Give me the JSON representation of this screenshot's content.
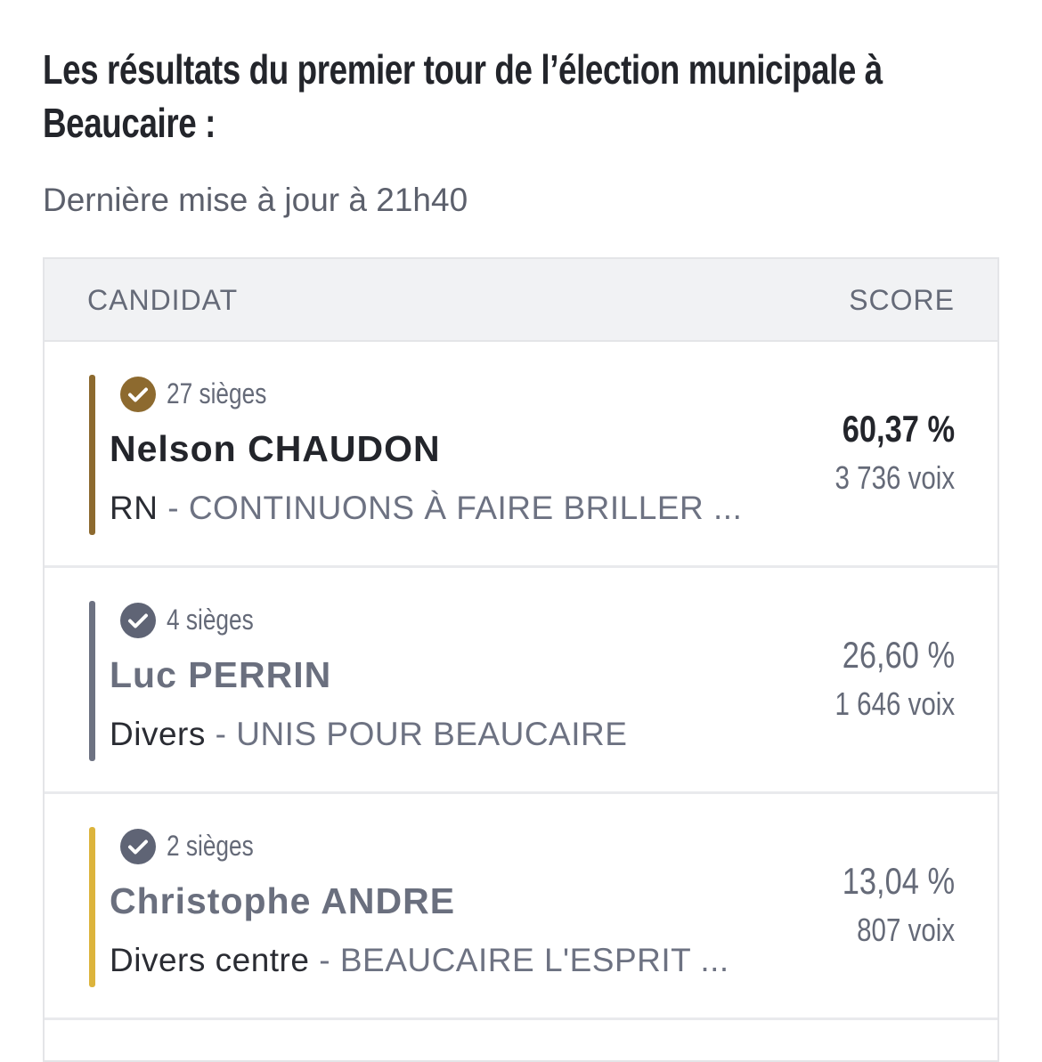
{
  "header": {
    "title": "Les résultats du premier tour de l’élection municipale à Beaucaire :",
    "updated": "Dernière mise à jour à 21h40"
  },
  "table": {
    "columns": [
      "CANDIDAT",
      "SCORE"
    ],
    "rows": [
      {
        "seats": "27 sièges",
        "name": "Nelson CHAUDON",
        "party": "RN",
        "list": "- CONTINUONS À FAIRE BRILLER ...",
        "score": "60,37 %",
        "votes": "3 736 voix",
        "bar_color": "#8d6a2f",
        "icon_color": "#8d6a2f"
      },
      {
        "seats": "4 sièges",
        "name": "Luc PERRIN",
        "party": "Divers",
        "list": "- UNIS POUR BEAUCAIRE",
        "score": "26,60 %",
        "votes": "1 646 voix",
        "bar_color": "#6d7282",
        "icon_color": "#5f6475"
      },
      {
        "seats": "2 sièges",
        "name": "Christophe ANDRE",
        "party": "Divers centre",
        "list": "- BEAUCAIRE L'ESPRIT ...",
        "score": "13,04 %",
        "votes": "807 voix",
        "bar_color": "#dcb43c",
        "icon_color": "#5f6475"
      }
    ]
  }
}
